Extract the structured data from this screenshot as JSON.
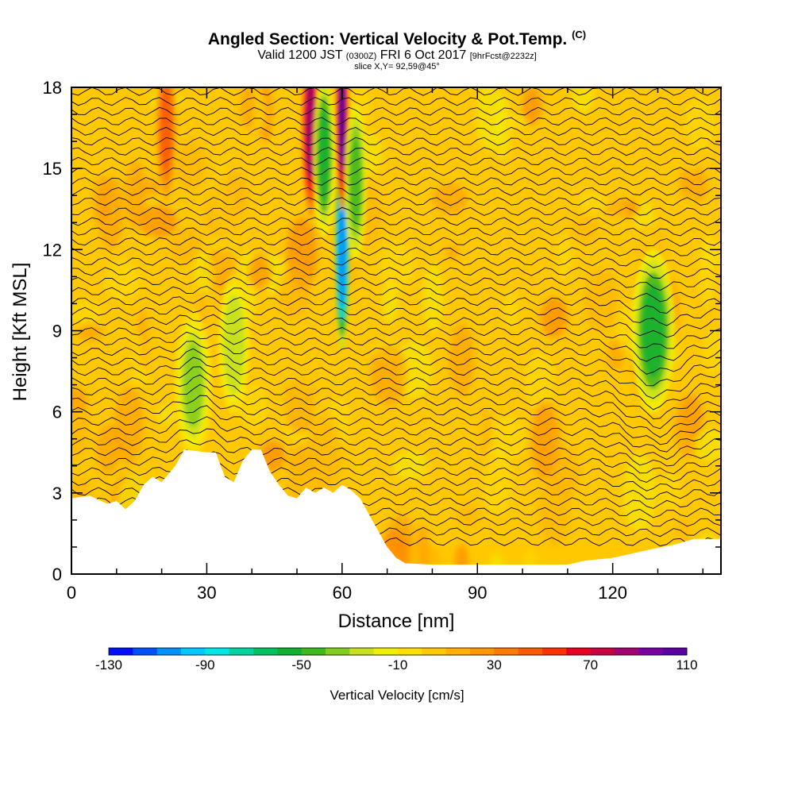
{
  "header": {
    "title": "Angled Section: Vertical Velocity & Pot.Temp.",
    "title_mark": "(C)",
    "line2_main": "Valid 1200 JST",
    "line2_utc": "(0300Z)",
    "line2_date": "FRI 6 Oct 2017",
    "line2_fcst": "[9hrFcst@2232z]",
    "line3": "slice X,Y= 92,59@45°"
  },
  "chart_data": {
    "type": "heatmap",
    "title": "Angled Section: Vertical Velocity & Pot.Temp.",
    "xlabel": "Distance [nm]",
    "ylabel": "Height [Kft MSL]",
    "xlim": [
      0,
      144
    ],
    "ylim": [
      0,
      18
    ],
    "x_ticks": [
      "0",
      "30",
      "60",
      "90",
      "120"
    ],
    "x_tick_values": [
      0,
      30,
      60,
      90,
      120
    ],
    "y_ticks": [
      "0",
      "3",
      "6",
      "9",
      "12",
      "15",
      "18"
    ],
    "y_tick_values": [
      0,
      3,
      6,
      9,
      12,
      15,
      18
    ],
    "colorbar": {
      "label": "Vertical Velocity [cm/s]",
      "tick_labels": [
        "-130",
        "-90",
        "-50",
        "-10",
        "30",
        "70",
        "110"
      ],
      "min": -130,
      "max": 110,
      "step": 10,
      "colors": [
        "#0010ff",
        "#0050ff",
        "#0090ff",
        "#00c8ff",
        "#00e6e6",
        "#00d2a0",
        "#00c060",
        "#10b030",
        "#40b820",
        "#80cc20",
        "#c8e020",
        "#f0f000",
        "#ffde00",
        "#ffc800",
        "#ffb000",
        "#ff9800",
        "#ff7a00",
        "#ff5a00",
        "#ff3000",
        "#e80020",
        "#c80040",
        "#a00070",
        "#7800a0",
        "#5a00a0"
      ]
    },
    "terrain_profile": [
      [
        0,
        2.8
      ],
      [
        4,
        2.9
      ],
      [
        8,
        2.6
      ],
      [
        10,
        2.7
      ],
      [
        12,
        2.4
      ],
      [
        14,
        2.7
      ],
      [
        16,
        3.3
      ],
      [
        18,
        3.6
      ],
      [
        20,
        3.4
      ],
      [
        21,
        3.6
      ],
      [
        23,
        4.0
      ],
      [
        25,
        4.6
      ],
      [
        30,
        4.5
      ],
      [
        32,
        4.5
      ],
      [
        34,
        3.6
      ],
      [
        36,
        3.4
      ],
      [
        38,
        4.2
      ],
      [
        40,
        4.6
      ],
      [
        42,
        4.6
      ],
      [
        44,
        3.8
      ],
      [
        46,
        3.3
      ],
      [
        48,
        2.9
      ],
      [
        50,
        2.8
      ],
      [
        52,
        3.2
      ],
      [
        54,
        3.0
      ],
      [
        56,
        3.2
      ],
      [
        58,
        3.0
      ],
      [
        60,
        3.3
      ],
      [
        62,
        3.1
      ],
      [
        64,
        2.8
      ],
      [
        66,
        2.2
      ],
      [
        68,
        1.6
      ],
      [
        70,
        1.0
      ],
      [
        72,
        0.6
      ],
      [
        74,
        0.4
      ],
      [
        80,
        0.35
      ],
      [
        100,
        0.35
      ],
      [
        110,
        0.35
      ],
      [
        114,
        0.5
      ],
      [
        120,
        0.6
      ],
      [
        128,
        0.9
      ],
      [
        134,
        1.1
      ],
      [
        138,
        1.3
      ],
      [
        144,
        1.3
      ]
    ],
    "velocity_features": [
      {
        "x": 21,
        "y": 16.5,
        "w": 0.8,
        "value": 40
      },
      {
        "x": 27,
        "y": 7.0,
        "w": 1.4,
        "value": -40
      },
      {
        "x": 36,
        "y": 8.5,
        "w": 1.2,
        "value": -30
      },
      {
        "x": 53,
        "y": 16.5,
        "w": 0.7,
        "value": 80
      },
      {
        "x": 56,
        "y": 15.5,
        "w": 0.8,
        "value": -60
      },
      {
        "x": 60,
        "y": 12.0,
        "w": 0.6,
        "value": -110
      },
      {
        "x": 60,
        "y": 17.0,
        "w": 0.5,
        "value": 100
      },
      {
        "x": 63,
        "y": 14.5,
        "w": 0.8,
        "value": -50
      },
      {
        "x": 129,
        "y": 9.0,
        "w": 1.6,
        "value": -60
      }
    ]
  }
}
